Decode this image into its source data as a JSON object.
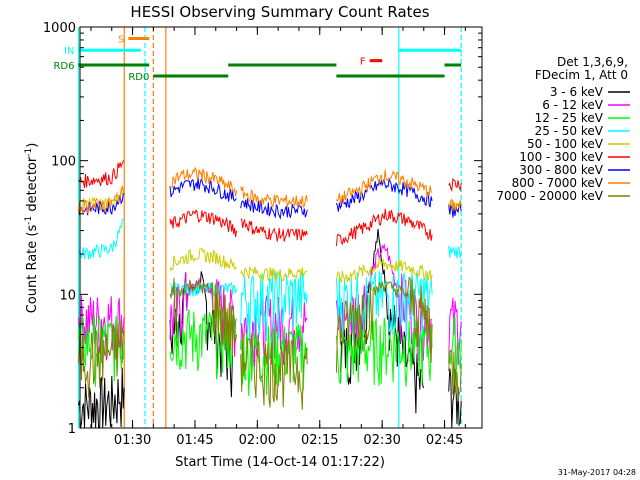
{
  "chart_data": {
    "type": "line",
    "title": "HESSI Observing Summary Count Rates",
    "xlabel": "Start Time (14-Oct-14 01:17:22)",
    "ylabel": "Count Rate (s⁻¹ detector⁻¹)",
    "ylabel_main": "Count Rate (s",
    "ylabel_sup1": "-1",
    "ylabel_mid": " detector",
    "ylabel_sup2": "-1",
    "ylabel_end": ")",
    "y_scale": "log",
    "xlim": [
      "01:17:22",
      "02:54:00"
    ],
    "ylim": [
      1,
      1000
    ],
    "x_ticks": [
      "01:30",
      "01:45",
      "02:00",
      "02:15",
      "02:30",
      "02:45"
    ],
    "y_ticks": [
      "1",
      "10",
      "100",
      "1000"
    ],
    "legend_title_1": "Det 1,3,6,9,",
    "legend_title_2": "FDecim 1, Att 0",
    "legend_position": "right",
    "series": [
      {
        "name": "3 - 6 keV",
        "color": "#000000",
        "segments": [
          {
            "x": [
              "01:17",
              "01:25",
              "01:28"
            ],
            "y": [
              1.5,
              1.6,
              2
            ]
          },
          {
            "x": [
              "01:39",
              "01:42",
              "01:45",
              "01:48",
              "01:51",
              "01:54"
            ],
            "y": [
              4.5,
              9,
              12,
              8,
              4.5,
              3.5
            ]
          },
          {
            "x": [
              "02:20",
              "02:25",
              "02:29",
              "02:32",
              "02:36",
              "02:40"
            ],
            "y": [
              3.5,
              6,
              28,
              7,
              3,
              2
            ]
          },
          {
            "x": [
              "02:46",
              "02:49"
            ],
            "y": [
              2,
              1.6
            ]
          }
        ]
      },
      {
        "name": "6 - 12 keV",
        "color": "#ff00ff",
        "segments": [
          {
            "x": [
              "01:17",
              "01:28"
            ],
            "y": [
              6.5,
              6.8
            ]
          },
          {
            "x": [
              "01:39",
              "01:44",
              "01:47",
              "01:50",
              "01:55"
            ],
            "y": [
              6.5,
              11,
              12,
              9,
              6.5
            ]
          },
          {
            "x": [
              "01:56",
              "02:12"
            ],
            "y": [
              6.2,
              6.5
            ]
          },
          {
            "x": [
              "02:19",
              "02:25",
              "02:29",
              "02:31",
              "02:34",
              "02:38",
              "02:42"
            ],
            "y": [
              6.3,
              8,
              20,
              22,
              10,
              7,
              6.5
            ]
          },
          {
            "x": [
              "02:46",
              "02:49"
            ],
            "y": [
              6.3,
              6.3
            ]
          }
        ]
      },
      {
        "name": "12 - 25 keV",
        "color": "#00ff00",
        "segments": [
          {
            "x": [
              "01:17",
              "01:28"
            ],
            "y": [
              4.5,
              4.5
            ]
          },
          {
            "x": [
              "01:39",
              "01:55"
            ],
            "y": [
              5.2,
              5
            ]
          },
          {
            "x": [
              "01:56",
              "02:12"
            ],
            "y": [
              3.8,
              4
            ]
          },
          {
            "x": [
              "02:19",
              "02:30",
              "02:42"
            ],
            "y": [
              3.5,
              4.5,
              4
            ]
          },
          {
            "x": [
              "02:46",
              "02:49"
            ],
            "y": [
              4.5,
              4.5
            ]
          }
        ]
      },
      {
        "name": "25 - 50 keV",
        "color": "#00ffff",
        "segments": [
          {
            "x": [
              "01:17",
              "01:25",
              "01:28"
            ],
            "y": [
              20,
              22,
              35
            ]
          },
          {
            "x": [
              "01:39",
              "01:55"
            ],
            "y": [
              11,
              11
            ]
          },
          {
            "x": [
              "01:56",
              "02:12"
            ],
            "y": [
              9.5,
              10
            ]
          },
          {
            "x": [
              "02:19",
              "02:42"
            ],
            "y": [
              9.5,
              10
            ]
          },
          {
            "x": [
              "02:46",
              "02:49"
            ],
            "y": [
              21,
              21
            ]
          }
        ]
      },
      {
        "name": "50 - 100 keV",
        "color": "#cccc00",
        "segments": [
          {
            "x": [
              "01:17",
              "01:25",
              "01:28"
            ],
            "y": [
              47,
              48,
              60
            ]
          },
          {
            "x": [
              "01:39",
              "01:45",
              "01:50",
              "01:55"
            ],
            "y": [
              17,
              20,
              19,
              16
            ]
          },
          {
            "x": [
              "01:56",
              "02:05",
              "02:12"
            ],
            "y": [
              15,
              14,
              15
            ]
          },
          {
            "x": [
              "02:19",
              "02:26",
              "02:30",
              "02:36",
              "02:42"
            ],
            "y": [
              13,
              15,
              17,
              16,
              14
            ]
          },
          {
            "x": [
              "02:46",
              "02:49"
            ],
            "y": [
              46,
              46
            ]
          }
        ]
      },
      {
        "name": "100 - 300 keV",
        "color": "#ff0000",
        "segments": [
          {
            "x": [
              "01:17",
              "01:25",
              "01:28"
            ],
            "y": [
              70,
              75,
              100
            ]
          },
          {
            "x": [
              "01:39",
              "01:45",
              "01:50",
              "01:55"
            ],
            "y": [
              33,
              40,
              37,
              30
            ]
          },
          {
            "x": [
              "01:56",
              "02:00",
              "02:05",
              "02:12"
            ],
            "y": [
              36,
              30,
              28,
              28
            ]
          },
          {
            "x": [
              "02:19",
              "02:26",
              "02:31",
              "02:36",
              "02:42"
            ],
            "y": [
              25,
              32,
              40,
              36,
              28
            ]
          },
          {
            "x": [
              "02:46",
              "02:49"
            ],
            "y": [
              68,
              68
            ]
          }
        ]
      },
      {
        "name": "300 - 800 keV",
        "color": "#0000ff",
        "segments": [
          {
            "x": [
              "01:17",
              "01:25",
              "01:28"
            ],
            "y": [
              43,
              45,
              57
            ]
          },
          {
            "x": [
              "01:39",
              "01:42",
              "01:46",
              "01:50",
              "01:55"
            ],
            "y": [
              58,
              65,
              68,
              62,
              52
            ]
          },
          {
            "x": [
              "01:56",
              "02:00",
              "02:06",
              "02:12"
            ],
            "y": [
              50,
              45,
              42,
              43
            ]
          },
          {
            "x": [
              "02:19",
              "02:25",
              "02:30",
              "02:35",
              "02:42"
            ],
            "y": [
              45,
              55,
              68,
              62,
              50
            ]
          },
          {
            "x": [
              "02:46",
              "02:49"
            ],
            "y": [
              42,
              42
            ]
          }
        ]
      },
      {
        "name": "800 - 7000 keV",
        "color": "#ff8000",
        "segments": [
          {
            "x": [
              "01:17",
              "01:25",
              "01:28"
            ],
            "y": [
              45,
              48,
              60
            ]
          },
          {
            "x": [
              "01:39",
              "01:42",
              "01:46",
              "01:50",
              "01:55"
            ],
            "y": [
              70,
              78,
              80,
              72,
              60
            ]
          },
          {
            "x": [
              "01:56",
              "02:00",
              "02:06",
              "02:12"
            ],
            "y": [
              58,
              52,
              50,
              50
            ]
          },
          {
            "x": [
              "02:19",
              "02:25",
              "02:30",
              "02:35",
              "02:42"
            ],
            "y": [
              50,
              62,
              78,
              72,
              58
            ]
          },
          {
            "x": [
              "02:46",
              "02:49"
            ],
            "y": [
              46,
              46
            ]
          }
        ]
      },
      {
        "name": "7000 - 20000 keV",
        "color": "#808000",
        "segments": [
          {
            "x": [
              "01:17",
              "01:25",
              "01:28"
            ],
            "y": [
              3.5,
              3.8,
              5
            ]
          },
          {
            "x": [
              "01:39",
              "01:44",
              "01:48",
              "01:52",
              "01:55"
            ],
            "y": [
              9,
              12,
              11,
              7,
              5
            ]
          },
          {
            "x": [
              "01:56",
              "02:05",
              "02:12"
            ],
            "y": [
              3.5,
              3,
              3
            ]
          },
          {
            "x": [
              "02:19",
              "02:25",
              "02:30",
              "02:36",
              "02:42"
            ],
            "y": [
              5,
              8,
              12,
              10,
              6
            ]
          },
          {
            "x": [
              "02:46",
              "02:49"
            ],
            "y": [
              3,
              3
            ]
          }
        ]
      }
    ],
    "status_bars": [
      {
        "label": "S",
        "color": "#ff8000",
        "x": [
          "01:29",
          "01:34"
        ],
        "y": 820
      },
      {
        "label": "IN",
        "color": "#00ffff",
        "x": [
          "01:17",
          "01:32"
        ],
        "y": 670
      },
      {
        "label": "",
        "color": "#00ffff",
        "x": [
          "02:34",
          "02:49"
        ],
        "y": 670
      },
      {
        "label": "F",
        "color": "#ff0000",
        "x": [
          "02:27",
          "02:30"
        ],
        "y": 560
      },
      {
        "label": "RD0",
        "color": "#008000",
        "x": [
          "01:35",
          "01:53"
        ],
        "y": 430
      },
      {
        "label": "RD6",
        "color": "#008000",
        "x": [
          "01:17",
          "01:34"
        ],
        "y": 520
      },
      {
        "label": "",
        "color": "#008000",
        "x": [
          "01:53",
          "02:19"
        ],
        "y": 520
      },
      {
        "label": "",
        "color": "#008000",
        "x": [
          "02:19",
          "02:45"
        ],
        "y": 430
      },
      {
        "label": "",
        "color": "#008000",
        "x": [
          "02:45",
          "02:49"
        ],
        "y": 520
      }
    ],
    "vlines": [
      {
        "x": "01:17",
        "color": "#00ffff",
        "dash": false
      },
      {
        "x": "01:28",
        "color": "#ff8000",
        "dash": false
      },
      {
        "x": "01:33",
        "color": "#00ffff",
        "dash": true
      },
      {
        "x": "01:35",
        "color": "#ff8000",
        "dash": true
      },
      {
        "x": "01:38",
        "color": "#ff8000",
        "dash": false
      },
      {
        "x": "02:34",
        "color": "#00ffff",
        "dash": false
      },
      {
        "x": "02:49",
        "color": "#00ffff",
        "dash": true
      }
    ],
    "footer_date": "31-May-2017 04:28"
  }
}
